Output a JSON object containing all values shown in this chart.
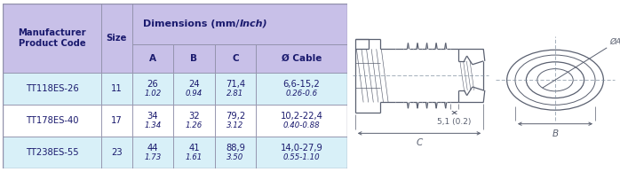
{
  "header_bg": "#c8c0e8",
  "subheader_bg": "#c8c0e8",
  "row_bg_light": "#d8f0f8",
  "row_bg_white": "#ffffff",
  "border_color": "#9090aa",
  "text_color": "#1a1a6e",
  "draw_color": "#5a6070",
  "col_header_text": [
    "Manufacturer\nProduct Code",
    "Size",
    "A",
    "B",
    "C",
    "Ø Cable"
  ],
  "dim_header": "Dimensions (mm/",
  "dim_header_italic": "Inch",
  "dim_header_end": ")",
  "rows": [
    [
      "TT118ES-26",
      "11",
      "26\n1.02",
      "24\n0.94",
      "71,4\n2.81",
      "6,6-15,2\n0.26-0.6"
    ],
    [
      "TT178ES-40",
      "17",
      "34\n1.34",
      "32\n1.26",
      "79,2\n3.12",
      "10,2-22,4\n0.40-0.88"
    ],
    [
      "TT238ES-55",
      "23",
      "44\n1.73",
      "41\n1.61",
      "88,9\n3.50",
      "14,0-27,9\n0.55-1.10"
    ]
  ],
  "dim_label": "5,1 (0.2)",
  "fig_width": 6.98,
  "fig_height": 1.94
}
